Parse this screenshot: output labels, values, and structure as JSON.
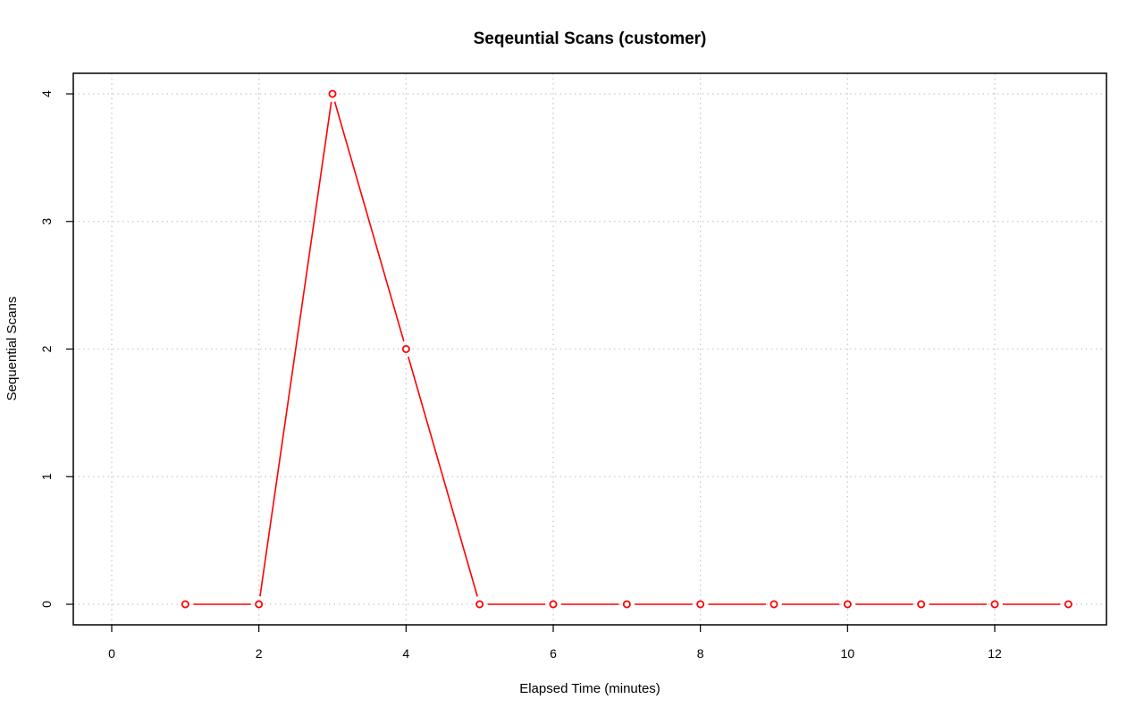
{
  "chart_data": {
    "type": "line",
    "title": "Seqeuntial Scans (customer)",
    "xlabel": "Elapsed Time (minutes)",
    "ylabel": "Sequential Scans",
    "xlim": [
      0,
      13
    ],
    "ylim": [
      0,
      4
    ],
    "x_ticks": [
      "0",
      "2",
      "4",
      "6",
      "8",
      "10",
      "12"
    ],
    "y_ticks": [
      "0",
      "1",
      "2",
      "3",
      "4"
    ],
    "grid": true,
    "series": [
      {
        "color": "#ff0000",
        "x": [
          1,
          2,
          3,
          4,
          5,
          6,
          7,
          8,
          9,
          10,
          11,
          12,
          13
        ],
        "y": [
          0,
          0,
          4,
          2,
          0,
          0,
          0,
          0,
          0,
          0,
          0,
          0,
          0
        ]
      }
    ]
  }
}
